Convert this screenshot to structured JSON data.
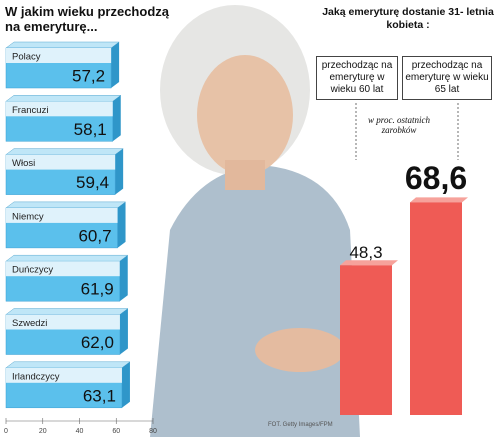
{
  "chart_data": [
    {
      "type": "hbar",
      "title": "W jakim wieku przechodzą na emeryturę...",
      "categories": [
        "Polacy",
        "Francuzi",
        "Włosi",
        "Niemcy",
        "Duńczycy",
        "Szwedzi",
        "Irlandczycy"
      ],
      "values": [
        57.2,
        58.1,
        59.4,
        60.7,
        61.9,
        62.0,
        63.1
      ],
      "value_labels": [
        "57,2",
        "58,1",
        "59,4",
        "60,7",
        "61,9",
        "62,0",
        "63,1"
      ],
      "color": "#5bc0ec",
      "xlim": [
        0,
        80
      ],
      "xticks": [
        0,
        20,
        40,
        60,
        80
      ]
    },
    {
      "type": "bar",
      "title": "Jaką emeryturę dostanie 31- letnia kobieta :",
      "subtitle": "w proc. ostatnich zarobków",
      "categories": [
        "przechodząc na emeryturę w wieku 60 lat",
        "przechodząc na emeryturę w wieku 65 lat"
      ],
      "values": [
        48.3,
        68.6
      ],
      "value_labels": [
        "48,3",
        "68,6"
      ],
      "color": "#ef5b55",
      "source": "FOT. Getty Images/FPM"
    }
  ]
}
